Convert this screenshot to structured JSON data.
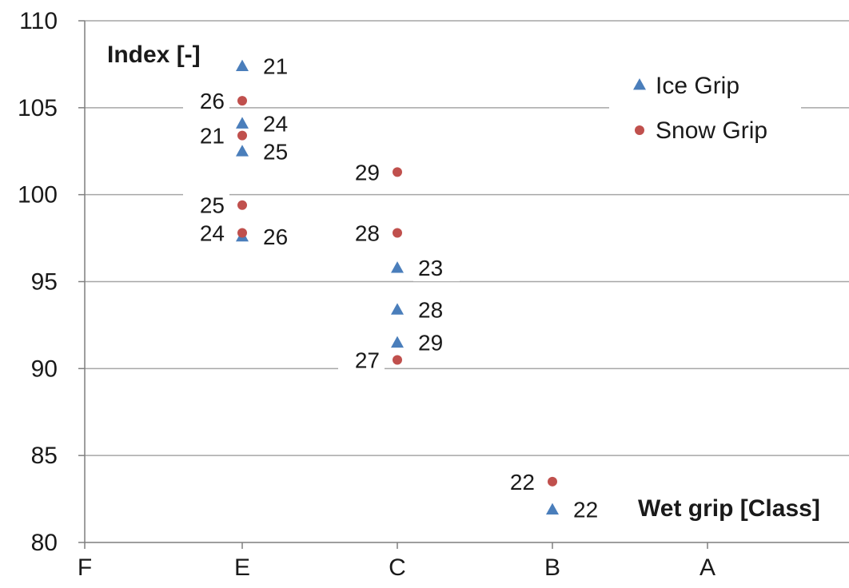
{
  "chart_data": {
    "type": "scatter",
    "title": "",
    "ylabel": "Index [-]",
    "xlabel": "Wet grip [Class]",
    "ylim": [
      80,
      110
    ],
    "y_ticks": [
      80,
      85,
      90,
      95,
      100,
      105,
      110
    ],
    "categories": [
      "F",
      "E",
      "C",
      "B",
      "A"
    ],
    "grid": "horizontal",
    "legend_position": "top-right",
    "series": [
      {
        "name": "Ice Grip",
        "marker": "triangle",
        "color": "#4a7ebb",
        "points": [
          {
            "x": "E",
            "y": 107.4,
            "label": "21"
          },
          {
            "x": "E",
            "y": 104.1,
            "label": "24"
          },
          {
            "x": "E",
            "y": 102.5,
            "label": "25"
          },
          {
            "x": "E",
            "y": 97.6,
            "label": "26"
          },
          {
            "x": "C",
            "y": 95.8,
            "label": "23"
          },
          {
            "x": "C",
            "y": 93.4,
            "label": "28"
          },
          {
            "x": "C",
            "y": 91.5,
            "label": "29"
          },
          {
            "x": "B",
            "y": 81.9,
            "label": "22"
          }
        ]
      },
      {
        "name": "Snow Grip",
        "marker": "circle",
        "color": "#c0504d",
        "points": [
          {
            "x": "E",
            "y": 105.4,
            "label": "26"
          },
          {
            "x": "E",
            "y": 103.4,
            "label": "21"
          },
          {
            "x": "E",
            "y": 99.4,
            "label": "25"
          },
          {
            "x": "E",
            "y": 97.8,
            "label": "24"
          },
          {
            "x": "C",
            "y": 101.3,
            "label": "29"
          },
          {
            "x": "C",
            "y": 97.8,
            "label": "28"
          },
          {
            "x": "C",
            "y": 90.5,
            "label": "27"
          },
          {
            "x": "B",
            "y": 83.5,
            "label": "22"
          }
        ]
      }
    ]
  }
}
